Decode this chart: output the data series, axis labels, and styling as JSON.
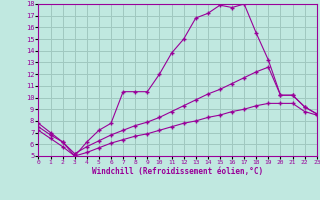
{
  "xlabel": "Windchill (Refroidissement éolien,°C)",
  "background_color": "#c0e8e0",
  "grid_color": "#a0c8c0",
  "line_color": "#990099",
  "series1_x": [
    0,
    1,
    2,
    3,
    4,
    5,
    6,
    7,
    8,
    9,
    10,
    11,
    12,
    13,
    14,
    15,
    16,
    17,
    18,
    19,
    20,
    21,
    22,
    23
  ],
  "series1_y": [
    7.8,
    7.0,
    6.2,
    5.0,
    6.2,
    7.2,
    7.8,
    10.5,
    10.5,
    10.5,
    12.0,
    13.8,
    15.0,
    16.8,
    17.2,
    17.9,
    17.7,
    18.0,
    15.5,
    13.2,
    10.2,
    10.2,
    9.2,
    8.6
  ],
  "series2_x": [
    0,
    1,
    2,
    3,
    4,
    5,
    6,
    7,
    8,
    9,
    10,
    11,
    12,
    13,
    14,
    15,
    16,
    17,
    18,
    19,
    20,
    21,
    22,
    23
  ],
  "series2_y": [
    7.5,
    6.8,
    6.2,
    5.2,
    5.8,
    6.3,
    6.8,
    7.2,
    7.6,
    7.9,
    8.3,
    8.8,
    9.3,
    9.8,
    10.3,
    10.7,
    11.2,
    11.7,
    12.2,
    12.6,
    10.2,
    10.2,
    9.2,
    8.6
  ],
  "series3_x": [
    0,
    1,
    2,
    3,
    4,
    5,
    6,
    7,
    8,
    9,
    10,
    11,
    12,
    13,
    14,
    15,
    16,
    17,
    18,
    19,
    20,
    21,
    22,
    23
  ],
  "series3_y": [
    7.2,
    6.5,
    5.8,
    5.0,
    5.3,
    5.7,
    6.1,
    6.4,
    6.7,
    6.9,
    7.2,
    7.5,
    7.8,
    8.0,
    8.3,
    8.5,
    8.8,
    9.0,
    9.3,
    9.5,
    9.5,
    9.5,
    8.8,
    8.5
  ],
  "xlim": [
    0,
    23
  ],
  "ylim": [
    5,
    18
  ],
  "yticks": [
    5,
    6,
    7,
    8,
    9,
    10,
    11,
    12,
    13,
    14,
    15,
    16,
    17,
    18
  ],
  "xticks": [
    0,
    1,
    2,
    3,
    4,
    5,
    6,
    7,
    8,
    9,
    10,
    11,
    12,
    13,
    14,
    15,
    16,
    17,
    18,
    19,
    20,
    21,
    22,
    23
  ]
}
